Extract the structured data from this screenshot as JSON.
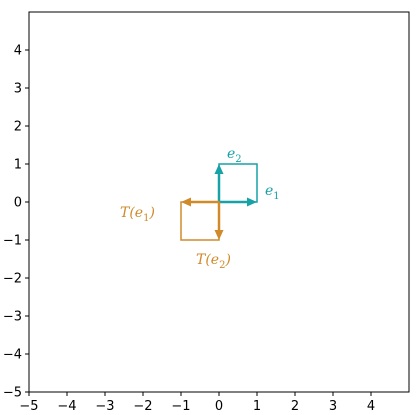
{
  "chart_data": {
    "type": "vector-plot",
    "title": "",
    "xlabel": "",
    "ylabel": "",
    "xlim": [
      -5,
      5
    ],
    "ylim": [
      -5,
      5
    ],
    "xticks": [
      -5,
      -4,
      -3,
      -2,
      -1,
      0,
      1,
      2,
      3,
      4
    ],
    "yticks": [
      -5,
      -4,
      -3,
      -2,
      -1,
      0,
      1,
      2,
      3,
      4
    ],
    "xtick_labels": [
      "−5",
      "−4",
      "−3",
      "−2",
      "−1",
      "0",
      "1",
      "2",
      "3",
      "4"
    ],
    "ytick_labels": [
      "−5",
      "−4",
      "−3",
      "−2",
      "−1",
      "0",
      "1",
      "2",
      "3",
      "4"
    ],
    "grid": false,
    "series": [
      {
        "key": "basis",
        "color": "#17a2a8",
        "vectors": [
          {
            "from": [
              0,
              0
            ],
            "to": [
              1,
              0
            ],
            "label": {
              "base": "e",
              "sub": "1"
            }
          },
          {
            "from": [
              0,
              0
            ],
            "to": [
              0,
              1
            ],
            "label": {
              "base": "e",
              "sub": "2"
            }
          }
        ],
        "square": [
          [
            0,
            0
          ],
          [
            1,
            0
          ],
          [
            1,
            1
          ],
          [
            0,
            1
          ]
        ]
      },
      {
        "key": "transformed",
        "color": "#d08a2a",
        "vectors": [
          {
            "from": [
              0,
              0
            ],
            "to": [
              -1,
              0
            ],
            "label": {
              "base": "T(e",
              "sub": "1",
              "close": ")"
            }
          },
          {
            "from": [
              0,
              0
            ],
            "to": [
              0,
              -1
            ],
            "label": {
              "base": "T(e",
              "sub": "2",
              "close": ")"
            }
          }
        ],
        "square": [
          [
            0,
            0
          ],
          [
            -1,
            0
          ],
          [
            -1,
            -1
          ],
          [
            0,
            -1
          ]
        ]
      }
    ]
  }
}
